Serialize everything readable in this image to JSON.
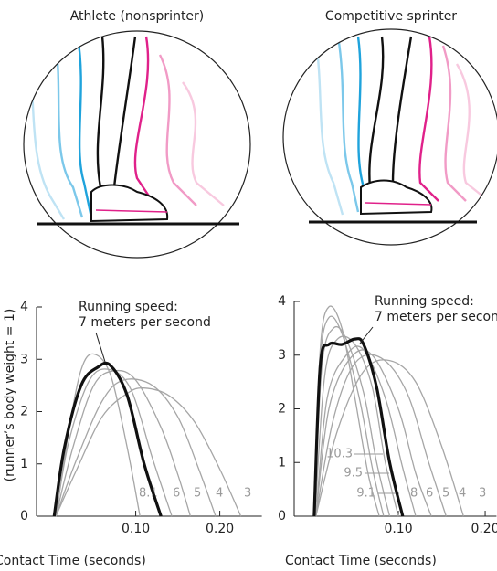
{
  "chart_data": [
    {
      "type": "line",
      "title": "Athlete (nonsprinter)",
      "ylabel": "(runner’s body weight = 1)",
      "xlabel": "Contact Time (seconds)",
      "annotation": [
        "Running speed:",
        "7 meters per second"
      ],
      "xlim": [
        -0.018,
        0.25
      ],
      "ylim": [
        0,
        4
      ],
      "xticks": [
        {
          "value": 0.1,
          "label": "0.10"
        },
        {
          "value": 0.2,
          "label": "0.20"
        }
      ],
      "yticks": [
        0,
        1,
        2,
        3,
        4
      ],
      "series": [
        {
          "name": "3",
          "color": "#a6a6a6",
          "x": [
            0.005,
            0.03,
            0.06,
            0.09,
            0.11,
            0.14,
            0.17,
            0.2,
            0.225
          ],
          "values": [
            0,
            0.9,
            1.9,
            2.35,
            2.45,
            2.3,
            1.8,
            0.9,
            0
          ]
        },
        {
          "name": "4",
          "color": "#a6a6a6",
          "x": [
            0.005,
            0.03,
            0.06,
            0.085,
            0.12,
            0.15,
            0.175,
            0.195
          ],
          "values": [
            0,
            1.1,
            2.2,
            2.6,
            2.5,
            1.9,
            0.9,
            0
          ]
        },
        {
          "name": "5",
          "color": "#a6a6a6",
          "x": [
            0.005,
            0.025,
            0.05,
            0.075,
            0.1,
            0.13,
            0.15,
            0.165
          ],
          "values": [
            0,
            1.3,
            2.5,
            2.78,
            2.6,
            1.7,
            0.8,
            0
          ]
        },
        {
          "name": "6",
          "color": "#a6a6a6",
          "x": [
            0.005,
            0.02,
            0.045,
            0.07,
            0.095,
            0.12,
            0.143
          ],
          "values": [
            0,
            1.4,
            2.6,
            2.8,
            2.4,
            1.1,
            0
          ]
        },
        {
          "name": "8.1",
          "color": "#a6a6a6",
          "x": [
            0.005,
            0.02,
            0.035,
            0.05,
            0.07,
            0.09,
            0.105
          ],
          "values": [
            0,
            1.6,
            2.8,
            3.1,
            2.7,
            1.3,
            0
          ]
        },
        {
          "color": "#111111",
          "x": [
            0.003,
            0.015,
            0.035,
            0.055,
            0.07,
            0.09,
            0.11,
            0.13
          ],
          "values": [
            0,
            1.3,
            2.5,
            2.85,
            2.88,
            2.3,
            1.0,
            0
          ]
        }
      ]
    },
    {
      "type": "line",
      "title": "Competitive sprinter",
      "xlabel": "Contact Time (seconds)",
      "annotation": [
        "Running speed:",
        "7 meters per second"
      ],
      "xlim": [
        -0.02,
        0.213
      ],
      "ylim": [
        0,
        4
      ],
      "xticks": [
        {
          "value": 0.1,
          "label": "0.10"
        },
        {
          "value": 0.2,
          "label": "0.20"
        }
      ],
      "yticks": [
        0,
        1,
        2,
        3,
        4
      ],
      "series": [
        {
          "name": "3",
          "color": "#a6a6a6",
          "x": [
            0.005,
            0.03,
            0.06,
            0.09,
            0.12,
            0.15,
            0.175
          ],
          "values": [
            0,
            1.6,
            2.7,
            2.9,
            2.5,
            1.3,
            0
          ]
        },
        {
          "name": "4",
          "color": "#a6a6a6",
          "x": [
            0.005,
            0.025,
            0.05,
            0.08,
            0.11,
            0.135,
            0.155
          ],
          "values": [
            0,
            1.8,
            2.85,
            2.95,
            2.3,
            1.0,
            0
          ]
        },
        {
          "name": "5",
          "color": "#a6a6a6",
          "x": [
            0.005,
            0.02,
            0.045,
            0.07,
            0.1,
            0.12,
            0.138
          ],
          "values": [
            0,
            2.0,
            2.95,
            3.0,
            2.0,
            0.8,
            0
          ]
        },
        {
          "name": "6",
          "color": "#a6a6a6",
          "x": [
            0.005,
            0.018,
            0.04,
            0.06,
            0.085,
            0.105,
            0.12
          ],
          "values": [
            0,
            2.2,
            3.0,
            3.1,
            2.2,
            0.9,
            0
          ]
        },
        {
          "name": "8",
          "color": "#a6a6a6",
          "x": [
            0.004,
            0.015,
            0.03,
            0.05,
            0.07,
            0.085,
            0.1
          ],
          "values": [
            0,
            2.6,
            3.3,
            3.2,
            2.4,
            1.0,
            0
          ]
        },
        {
          "name": "9.1",
          "color": "#a6a6a6",
          "x": [
            0.003,
            0.012,
            0.025,
            0.04,
            0.06,
            0.075,
            0.09
          ],
          "values": [
            0,
            2.8,
            3.5,
            3.3,
            2.3,
            1.0,
            0
          ]
        },
        {
          "name": "9.5",
          "color": "#a6a6a6",
          "x": [
            0.003,
            0.01,
            0.02,
            0.035,
            0.055,
            0.07,
            0.083
          ],
          "values": [
            0,
            2.9,
            3.7,
            3.4,
            2.2,
            0.9,
            0
          ]
        },
        {
          "name": "10.3",
          "color": "#a6a6a6",
          "x": [
            0.003,
            0.01,
            0.02,
            0.035,
            0.05,
            0.065,
            0.078
          ],
          "values": [
            0,
            3.1,
            3.9,
            3.5,
            2.2,
            0.8,
            0
          ]
        },
        {
          "color": "#111111",
          "x": [
            0.003,
            0.01,
            0.02,
            0.035,
            0.05,
            0.06,
            0.075,
            0.09,
            0.105
          ],
          "values": [
            0,
            2.8,
            3.2,
            3.2,
            3.3,
            3.2,
            2.4,
            1.0,
            0
          ]
        }
      ]
    }
  ]
}
